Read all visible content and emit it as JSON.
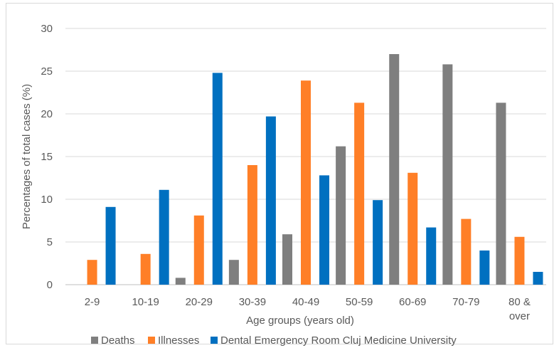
{
  "chart_data": {
    "type": "bar",
    "title": "",
    "xlabel": "Age groups (years old)",
    "ylabel": "Percentages of total cases (%)",
    "ylim": [
      0,
      30
    ],
    "yticks": [
      0,
      5,
      10,
      15,
      20,
      25,
      30
    ],
    "grid": true,
    "legend_position": "bottom",
    "categories": [
      [
        "2-9"
      ],
      [
        "10-19"
      ],
      [
        "20-29"
      ],
      [
        "30-39"
      ],
      [
        "40-49"
      ],
      [
        "50-59"
      ],
      [
        "60-69"
      ],
      [
        "70-79"
      ],
      [
        "80 &",
        "over"
      ]
    ],
    "series": [
      {
        "name": "Deaths",
        "color": "#7f7f7f",
        "values": [
          0,
          0,
          0.8,
          2.9,
          5.9,
          16.2,
          27.0,
          25.8,
          21.3
        ]
      },
      {
        "name": "Illnesses",
        "color": "#ff7f27",
        "values": [
          2.9,
          3.6,
          8.1,
          14.0,
          23.9,
          21.3,
          13.1,
          7.7,
          5.6
        ]
      },
      {
        "name": "Dental Emergency Room Cluj Medicine University",
        "color": "#0070c0",
        "values": [
          9.1,
          11.1,
          24.8,
          19.7,
          12.8,
          9.9,
          6.7,
          4.0,
          1.5
        ]
      }
    ]
  }
}
